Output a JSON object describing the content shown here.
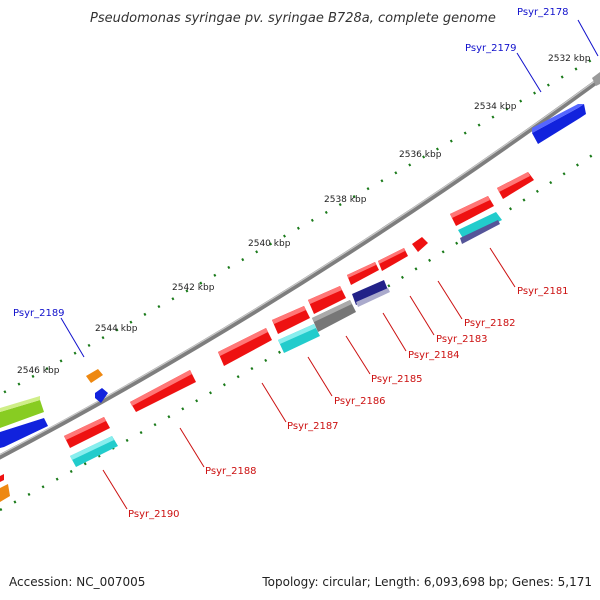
{
  "title": "Pseudomonas syringae pv. syringae B728a, complete genome",
  "footer": {
    "accession": "Accession: NC_007005",
    "topology": "Topology: circular; Length: 6,093,698 bp; Genes: 5,171"
  },
  "colors": {
    "backbone": "#8c8c8c",
    "tick": "#1a7a1a",
    "forward_label": "#1111cc",
    "reverse_label": "#cc1111",
    "gene_red": "#ee1111",
    "gene_blue": "#1122dd",
    "gene_cyan": "#22cccc",
    "gene_gray": "#777777",
    "gene_navy": "#222288",
    "gene_orange": "#ee8811",
    "gene_green": "#88cc22"
  },
  "ticks": [
    "2532 kbp",
    "2534 kbp",
    "2536 kbp",
    "2538 kbp",
    "2540 kbp",
    "2542 kbp",
    "2544 kbp",
    "2546 kbp"
  ],
  "genes_forward": [
    {
      "name": "Psyr_2178",
      "label": "Psyr_2178"
    },
    {
      "name": "Psyr_2179",
      "label": "Psyr_2179"
    },
    {
      "name": "Psyr_2189",
      "label": "Psyr_2189"
    }
  ],
  "genes_reverse": [
    {
      "name": "Psyr_2181",
      "label": "Psyr_2181"
    },
    {
      "name": "Psyr_2182",
      "label": "Psyr_2182"
    },
    {
      "name": "Psyr_2183",
      "label": "Psyr_2183"
    },
    {
      "name": "Psyr_2184",
      "label": "Psyr_2184"
    },
    {
      "name": "Psyr_2185",
      "label": "Psyr_2185"
    },
    {
      "name": "Psyr_2186",
      "label": "Psyr_2186"
    },
    {
      "name": "Psyr_2187",
      "label": "Psyr_2187"
    },
    {
      "name": "Psyr_2188",
      "label": "Psyr_2188"
    },
    {
      "name": "Psyr_2190",
      "label": "Psyr_2190"
    }
  ]
}
